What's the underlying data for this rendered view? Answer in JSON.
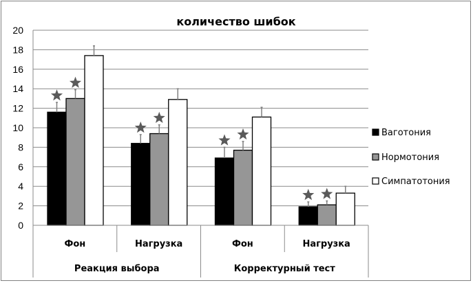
{
  "chart_data": {
    "type": "bar",
    "title": "количество шибок",
    "ylim": [
      0,
      20
    ],
    "yticks": [
      0,
      2,
      4,
      6,
      8,
      10,
      12,
      14,
      16,
      18,
      20
    ],
    "grid": true,
    "legend_position": "right",
    "groups": [
      "Реакция выбора",
      "Корректурный тест"
    ],
    "categories": [
      "Фон",
      "Нагрузка",
      "Фон",
      "Нагрузка"
    ],
    "series": [
      {
        "name": "Ваготония",
        "color": "#000000",
        "values": [
          11.6,
          8.4,
          6.9,
          1.9
        ],
        "errors": [
          1.0,
          0.9,
          1.1,
          0.5
        ],
        "star": [
          true,
          true,
          true,
          true
        ]
      },
      {
        "name": "Нормотония",
        "color": "#969696",
        "values": [
          13.0,
          9.4,
          7.7,
          2.1
        ],
        "errors": [
          0.9,
          0.9,
          0.9,
          0.4
        ],
        "star": [
          true,
          true,
          true,
          true
        ]
      },
      {
        "name": "Симпатотония",
        "color": "#ffffff",
        "values": [
          17.4,
          12.9,
          11.1,
          3.3
        ],
        "errors": [
          1.0,
          1.1,
          1.0,
          0.7
        ],
        "star": [
          false,
          false,
          false,
          false
        ]
      }
    ]
  }
}
